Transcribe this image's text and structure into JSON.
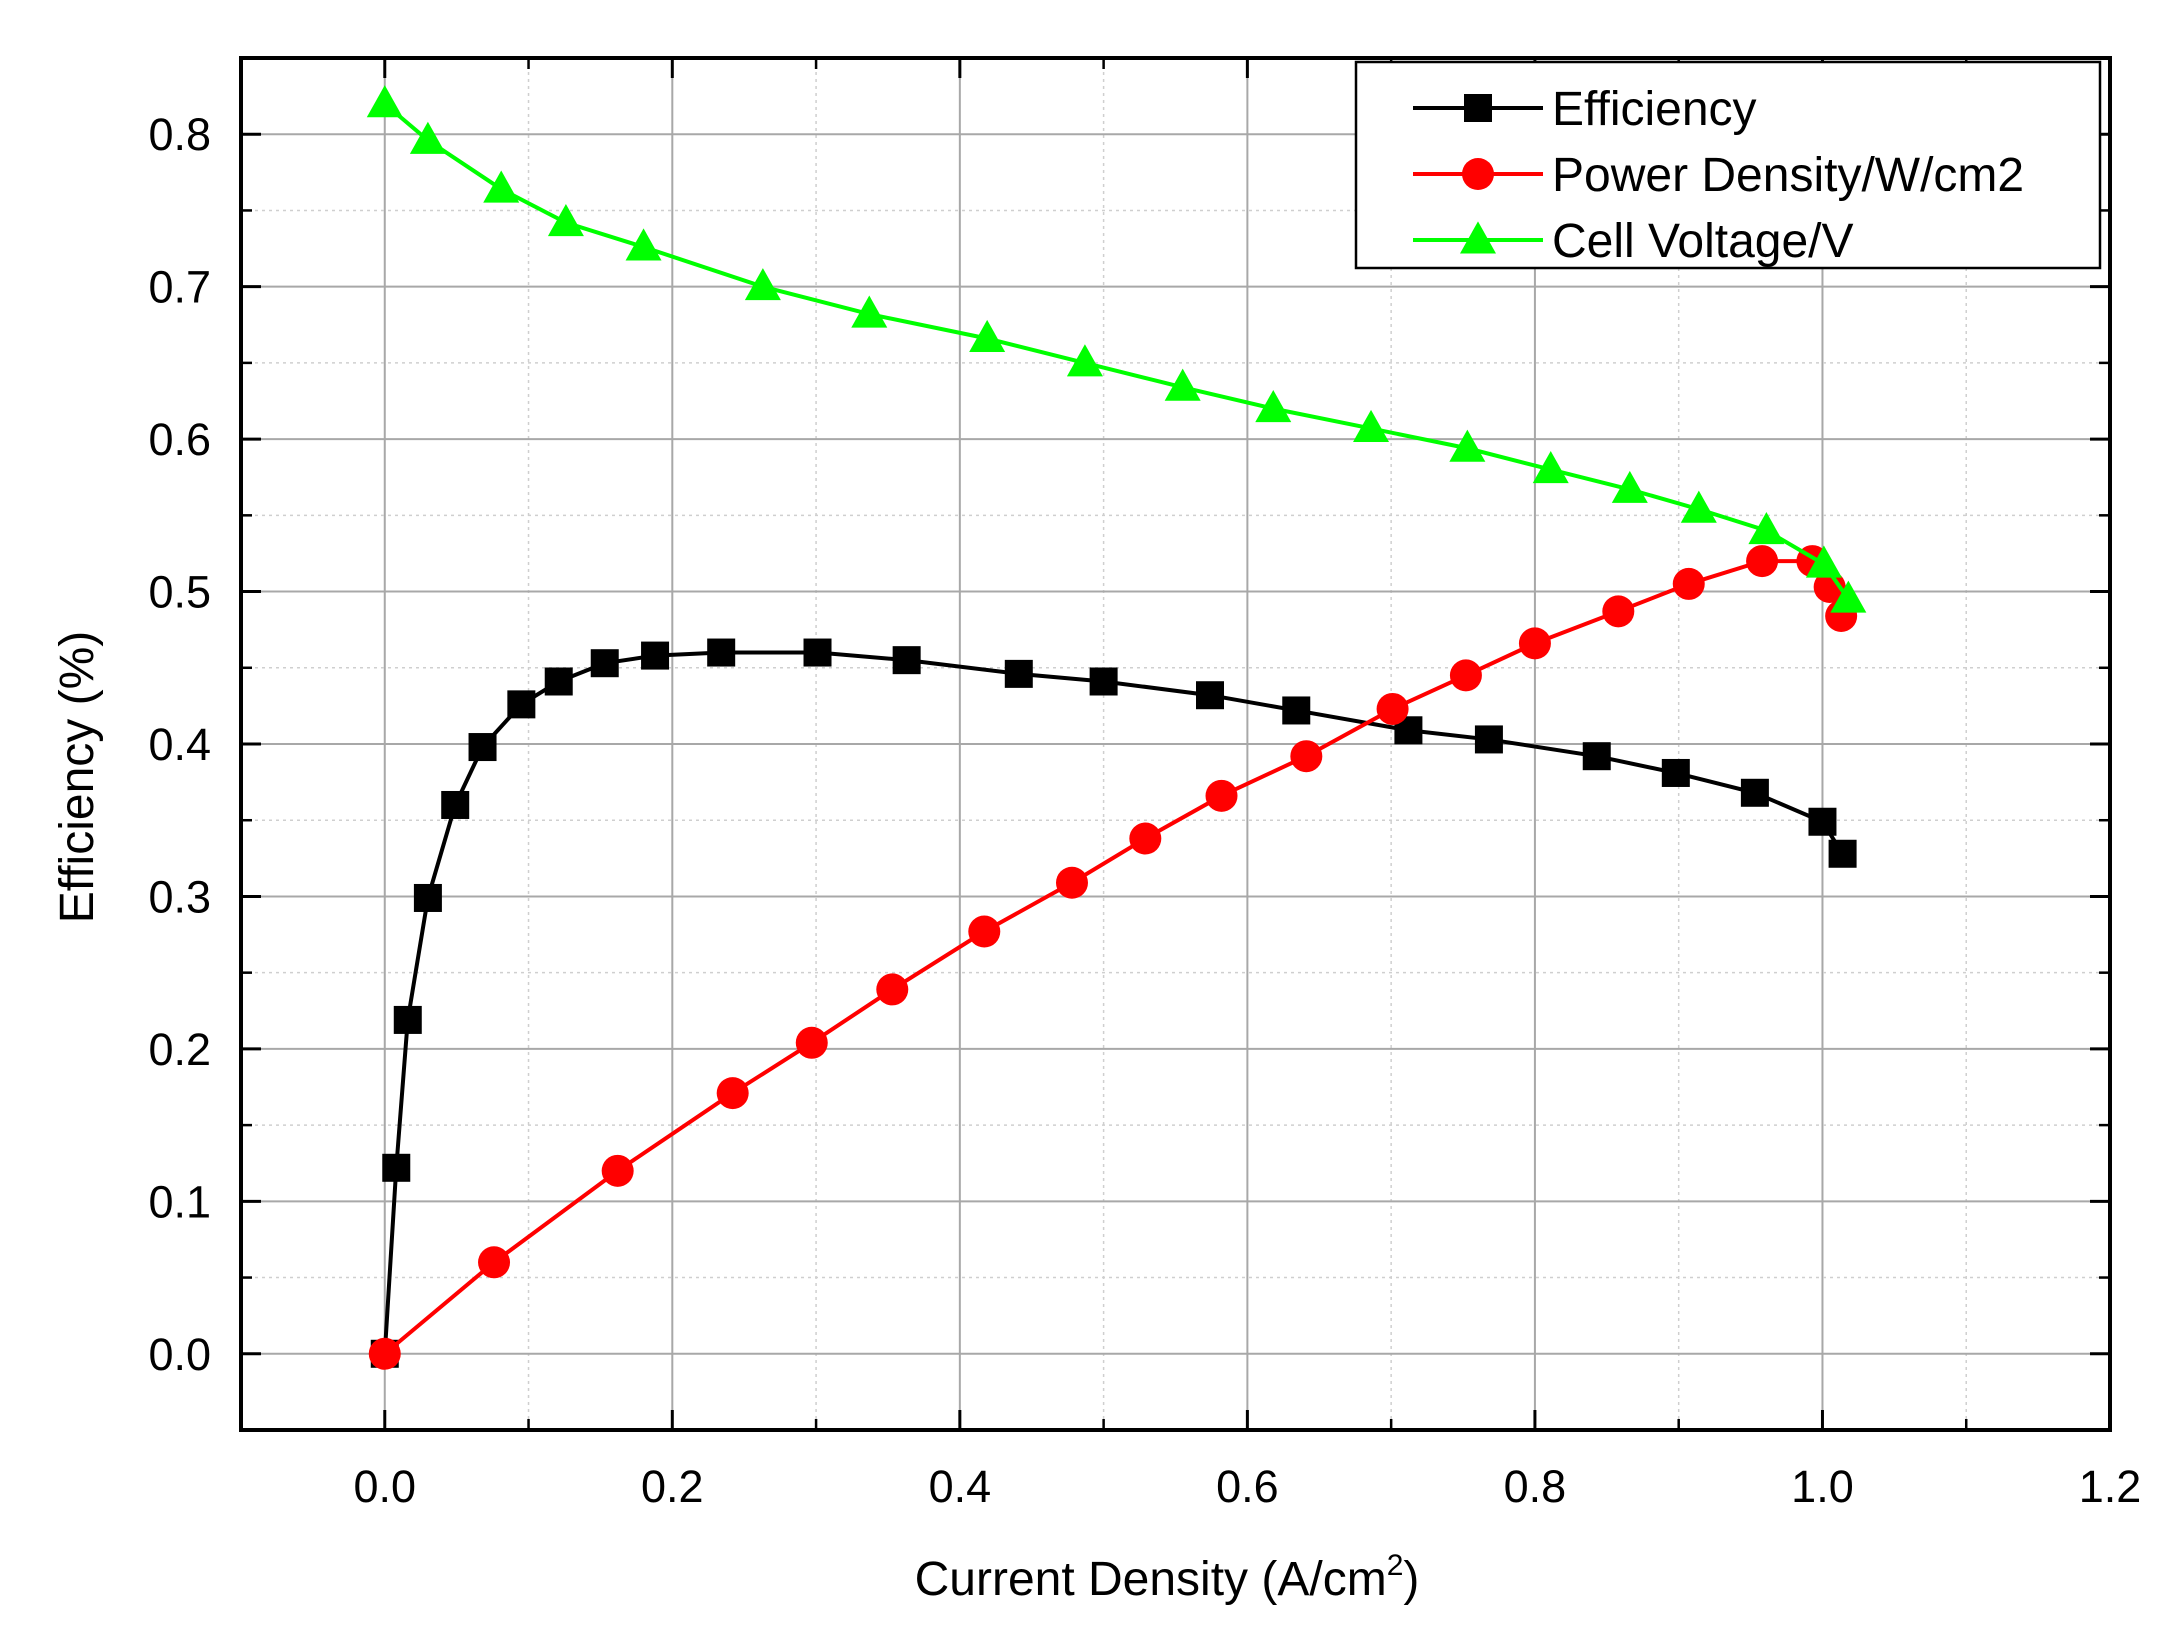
{
  "chart_data": {
    "type": "line",
    "title": "",
    "xlabel": "Current Density (A/cm",
    "xlabel_superscript": "2",
    "xlabel_suffix": ")",
    "ylabel": "Efficiency (%)",
    "xlim": [
      -0.1,
      1.2
    ],
    "ylim": [
      -0.05,
      0.85
    ],
    "x_ticks": [
      0.0,
      0.2,
      0.4,
      0.6,
      0.8,
      1.0,
      1.2
    ],
    "x_tick_labels": [
      "0.0",
      "0.2",
      "0.4",
      "0.6",
      "0.8",
      "1.0",
      "1.2"
    ],
    "y_ticks": [
      0.0,
      0.1,
      0.2,
      0.3,
      0.4,
      0.5,
      0.6,
      0.7,
      0.8
    ],
    "y_tick_labels": [
      "0.0",
      "0.1",
      "0.2",
      "0.3",
      "0.4",
      "0.5",
      "0.6",
      "0.7",
      "0.8"
    ],
    "grid": true,
    "legend_position": "top-right",
    "series": [
      {
        "name": "Efficiency",
        "color": "#000000",
        "marker": "square",
        "x": [
          0.0,
          0.008,
          0.016,
          0.03,
          0.049,
          0.068,
          0.095,
          0.121,
          0.153,
          0.188,
          0.234,
          0.301,
          0.363,
          0.441,
          0.5,
          0.574,
          0.634,
          0.712,
          0.768,
          0.843,
          0.898,
          0.953,
          1.0,
          1.014
        ],
        "y": [
          0.0,
          0.122,
          0.219,
          0.299,
          0.36,
          0.398,
          0.426,
          0.441,
          0.453,
          0.458,
          0.46,
          0.46,
          0.455,
          0.446,
          0.441,
          0.432,
          0.422,
          0.409,
          0.403,
          0.392,
          0.381,
          0.368,
          0.349,
          0.328
        ]
      },
      {
        "name": "Power Density/W/cm2",
        "color": "#ff0000",
        "marker": "circle",
        "x": [
          0.0,
          0.076,
          0.162,
          0.242,
          0.297,
          0.353,
          0.417,
          0.478,
          0.529,
          0.582,
          0.641,
          0.701,
          0.752,
          0.8,
          0.858,
          0.907,
          0.958,
          0.993,
          1.005,
          1.013
        ],
        "y": [
          0.0,
          0.06,
          0.12,
          0.171,
          0.204,
          0.239,
          0.277,
          0.309,
          0.338,
          0.366,
          0.392,
          0.423,
          0.445,
          0.466,
          0.487,
          0.505,
          0.52,
          0.52,
          0.503,
          0.484
        ]
      },
      {
        "name": "Cell Voltage/V",
        "color": "#00ff00",
        "marker": "triangle",
        "x": [
          0.0,
          0.03,
          0.081,
          0.126,
          0.18,
          0.263,
          0.337,
          0.419,
          0.487,
          0.555,
          0.618,
          0.686,
          0.753,
          0.811,
          0.866,
          0.914,
          0.961,
          1.001,
          1.018
        ],
        "y": [
          0.82,
          0.796,
          0.764,
          0.742,
          0.726,
          0.7,
          0.682,
          0.666,
          0.65,
          0.634,
          0.62,
          0.607,
          0.594,
          0.58,
          0.567,
          0.554,
          0.54,
          0.518,
          0.495
        ]
      }
    ]
  }
}
